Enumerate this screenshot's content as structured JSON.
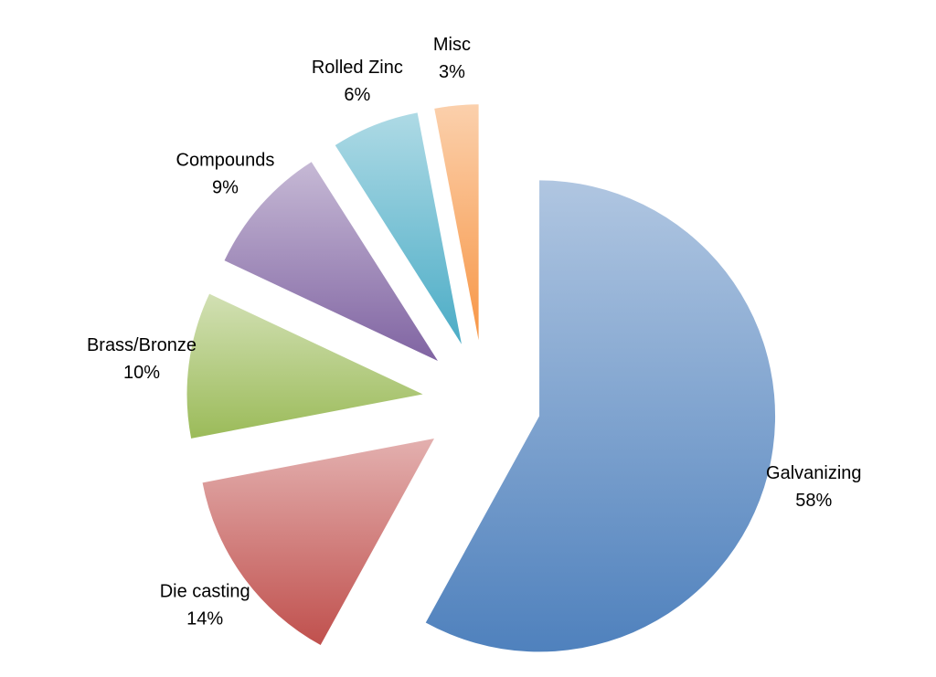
{
  "chart_data": {
    "type": "pie",
    "categories": [
      "Galvanizing",
      "Die casting",
      "Brass/Bronze",
      "Compounds",
      "Rolled Zinc",
      "Misc"
    ],
    "values": [
      58,
      14,
      10,
      9,
      6,
      3
    ],
    "value_labels": [
      "58%",
      "14%",
      "10%",
      "9%",
      "6%",
      "3%"
    ],
    "colors": [
      "#4f81bd",
      "#c0504d",
      "#9bbb59",
      "#8064a2",
      "#4bacc6",
      "#f79646"
    ],
    "exploded": true
  }
}
